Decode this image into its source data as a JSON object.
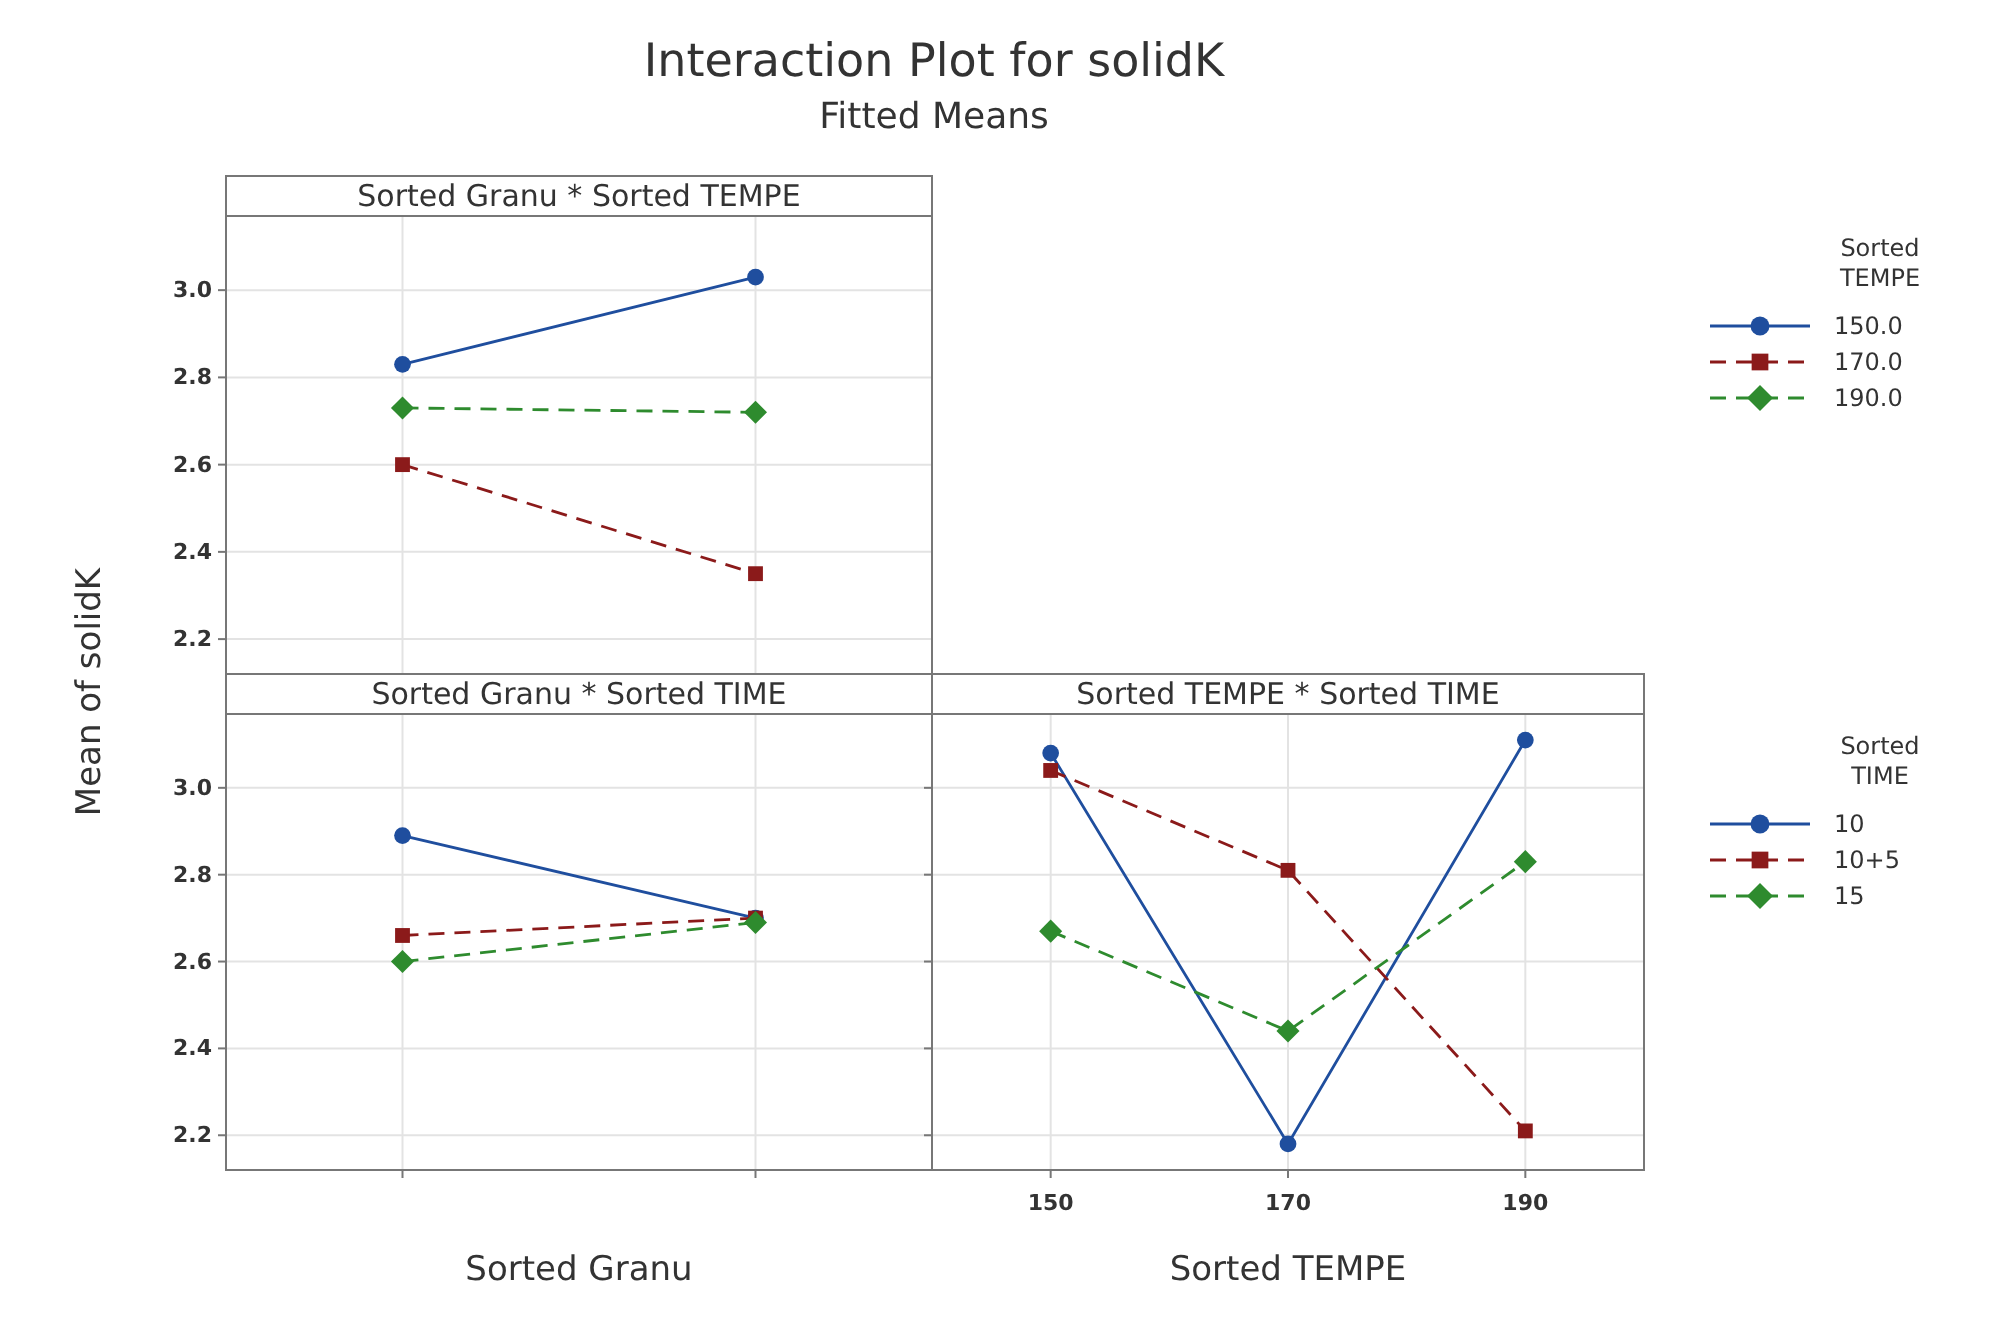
{
  "chart_data": [
    {
      "type": "line",
      "title": "Sorted Granu * Sorted TEMPE",
      "annotations": [
        "Interaction Plot for solidK",
        "Fitted Means"
      ],
      "ylabel": "Mean of solidK",
      "legend_title": "Sorted TEMPE",
      "categories": [
        null,
        null
      ],
      "ylim": [
        2.12,
        3.17
      ],
      "yticks": [
        2.2,
        2.4,
        2.6,
        2.8,
        {
          "value": 3,
          "label": "3.0"
        }
      ],
      "grid": true,
      "legend": "right",
      "tick_labels": "y",
      "series": [
        {
          "name": "150.0",
          "color": "#1f4e9e",
          "marker": "circle",
          "line_style": "solid",
          "values": [
            2.83,
            3.03
          ]
        },
        {
          "name": "170.0",
          "color": "#8b1a1a",
          "marker": "square",
          "line_style": "dashed",
          "values": [
            2.6,
            2.35
          ]
        },
        {
          "name": "190.0",
          "color": "#2e8b2e",
          "marker": "diamond",
          "line_style": "dashed",
          "values": [
            2.73,
            2.72
          ]
        }
      ]
    },
    {
      "type": "line",
      "title": "Sorted Granu * Sorted TIME",
      "xlabel": "Sorted Granu",
      "categories": [
        null,
        null
      ],
      "ylim": [
        2.12,
        3.17
      ],
      "yticks": [
        2.2,
        2.4,
        2.6,
        2.8,
        {
          "value": 3,
          "label": "3.0"
        }
      ],
      "grid": true,
      "series": [
        {
          "color": "#1f4e9e",
          "marker": "circle",
          "line_style": "solid",
          "values": [
            2.89,
            2.7
          ]
        },
        {
          "color": "#8b1a1a",
          "marker": "square",
          "line_style": "dashed",
          "values": [
            2.66,
            2.7
          ]
        },
        {
          "color": "#2e8b2e",
          "marker": "diamond",
          "line_style": "dashed",
          "values": [
            2.6,
            2.69
          ]
        }
      ]
    },
    {
      "type": "line",
      "title": "Sorted TEMPE * Sorted TIME",
      "xlabel": "Sorted TEMPE",
      "legend_title": "Sorted TIME",
      "categories": [
        "150",
        "170",
        "190"
      ],
      "ylim": [
        2.12,
        3.17
      ],
      "yticks": [
        {
          "value": 2.2,
          "label": null
        },
        {
          "value": 2.4,
          "label": null
        },
        {
          "value": 2.6,
          "label": null
        },
        {
          "value": 2.8,
          "label": null
        },
        {
          "value": 3,
          "label": null
        }
      ],
      "grid": true,
      "legend": "right",
      "tick_labels": "x",
      "series": [
        {
          "name": "10",
          "color": "#1f4e9e",
          "marker": "circle",
          "line_style": "solid",
          "values": [
            3.08,
            2.18,
            3.11
          ]
        },
        {
          "name": "10+5",
          "color": "#8b1a1a",
          "marker": "square",
          "line_style": "dashed",
          "values": [
            3.04,
            2.81,
            2.21
          ]
        },
        {
          "name": "15",
          "color": "#2e8b2e",
          "marker": "diamond",
          "line_style": "dashed",
          "values": [
            2.67,
            2.44,
            2.83
          ]
        }
      ]
    }
  ]
}
